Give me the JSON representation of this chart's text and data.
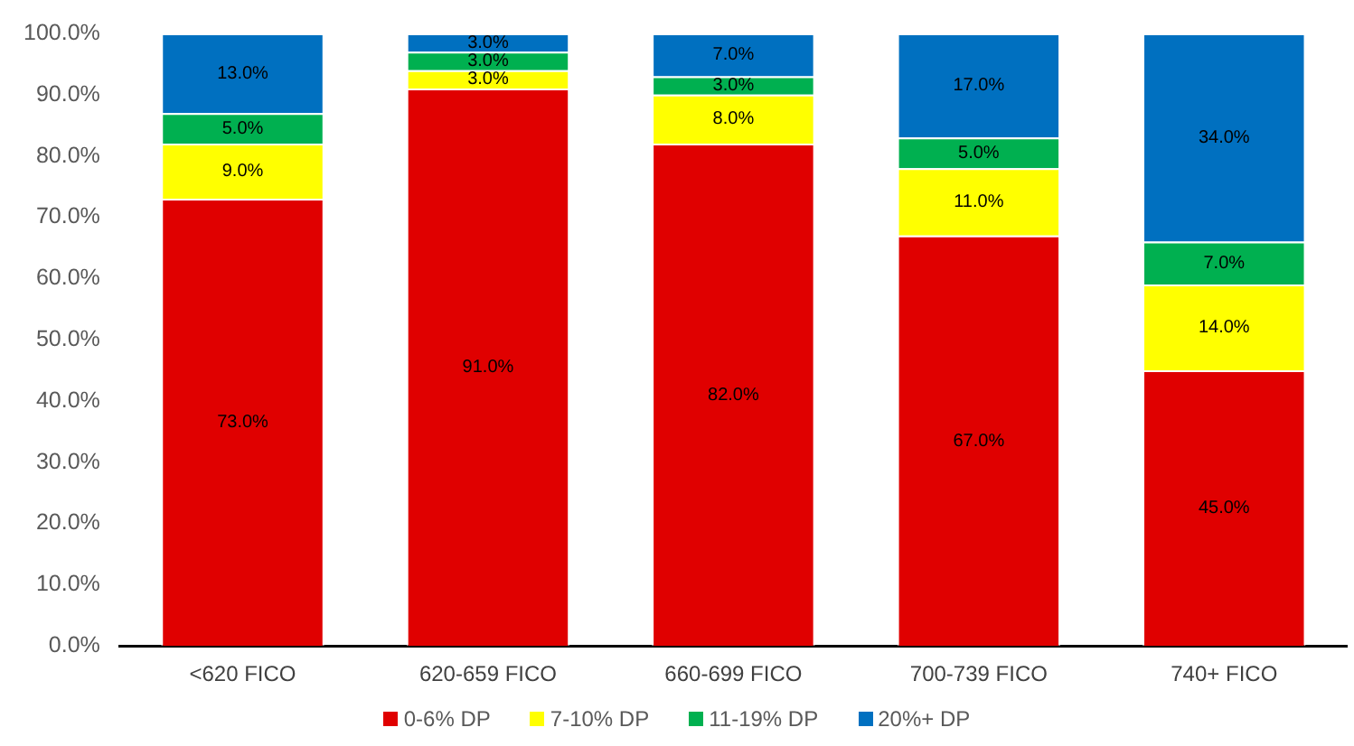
{
  "chart_data": {
    "type": "bar",
    "stacked": true,
    "categories": [
      "<620 FICO",
      "620-659 FICO",
      "660-699 FICO",
      "700-739 FICO",
      "740+ FICO"
    ],
    "series": [
      {
        "name": "0-6% DP",
        "color": "#e00000",
        "values": [
          73,
          91,
          82,
          67,
          45
        ],
        "value_labels": [
          "73.0%",
          "91.0%",
          "82.0%",
          "67.0%",
          "45.0%"
        ]
      },
      {
        "name": "7-10% DP",
        "color": "#ffff00",
        "values": [
          9,
          3,
          8,
          11,
          14
        ],
        "value_labels": [
          "9.0%",
          "3.0%",
          "8.0%",
          "11.0%",
          "14.0%"
        ]
      },
      {
        "name": "11-19% DP",
        "color": "#00b050",
        "values": [
          5,
          3,
          3,
          5,
          7
        ],
        "value_labels": [
          "5.0%",
          "3.0%",
          "3.0%",
          "5.0%",
          "7.0%"
        ]
      },
      {
        "name": "20%+ DP",
        "color": "#0070c0",
        "values": [
          13,
          3,
          7,
          17,
          34
        ],
        "value_labels": [
          "13.0%",
          "3.0%",
          "7.0%",
          "17.0%",
          "34.0%"
        ]
      }
    ],
    "ylim": [
      0,
      100
    ],
    "yticks": [
      {
        "value": 0,
        "label": "0.0%"
      },
      {
        "value": 10,
        "label": "10.0%"
      },
      {
        "value": 20,
        "label": "20.0%"
      },
      {
        "value": 30,
        "label": "30.0%"
      },
      {
        "value": 40,
        "label": "40.0%"
      },
      {
        "value": 50,
        "label": "50.0%"
      },
      {
        "value": 60,
        "label": "60.0%"
      },
      {
        "value": 70,
        "label": "70.0%"
      },
      {
        "value": 80,
        "label": "80.0%"
      },
      {
        "value": 90,
        "label": "90.0%"
      },
      {
        "value": 100,
        "label": "100.0%"
      }
    ],
    "legend": "bottom"
  }
}
